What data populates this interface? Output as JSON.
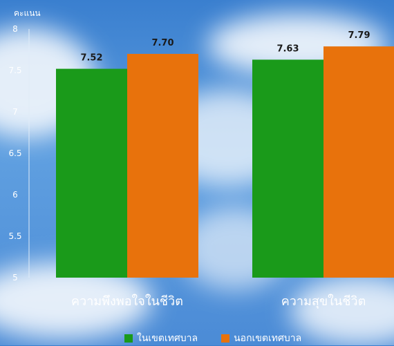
{
  "chart_data": {
    "type": "bar",
    "ylabel": "คะแนน",
    "categories": [
      "ความพึงพอใจในชีวิต",
      "ความสุขในชีวิต"
    ],
    "series": [
      {
        "name": "ในเขตเทศบาล",
        "values": [
          7.52,
          7.63
        ],
        "labels": [
          "7.52",
          "7.63"
        ],
        "color": "#1a9a1a"
      },
      {
        "name": "นอกเขตเทศบาล",
        "values": [
          7.7,
          7.79
        ],
        "labels": [
          "7.70",
          "7.79"
        ],
        "color": "#e8720c"
      }
    ],
    "ylim": [
      5,
      8
    ],
    "yticks": [
      "5",
      "5.5",
      "6",
      "6.5",
      "7",
      "7.5",
      "8"
    ],
    "grid": false,
    "legend_position": "bottom"
  }
}
